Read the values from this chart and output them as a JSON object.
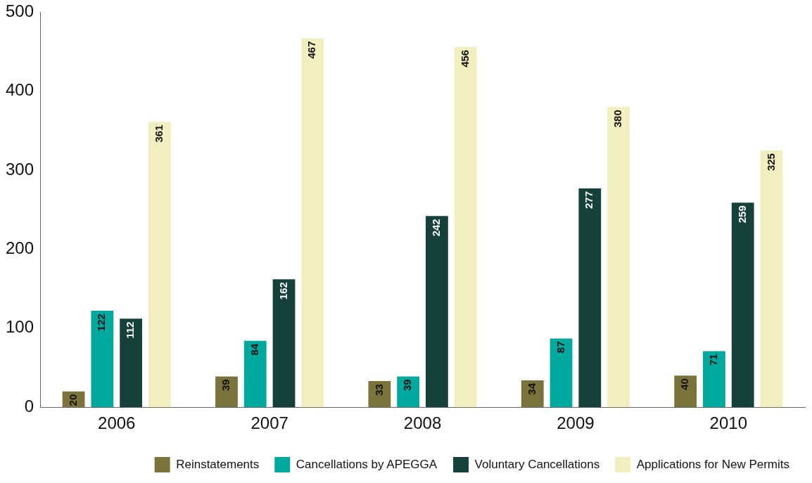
{
  "chart_data": {
    "type": "bar",
    "categories": [
      "2006",
      "2007",
      "2008",
      "2009",
      "2010"
    ],
    "series": [
      {
        "name": "Reinstatements",
        "color": "#7a743c",
        "values": [
          20,
          39,
          33,
          34,
          40
        ]
      },
      {
        "name": "Cancellations by APEGGA",
        "color": "#00a99d",
        "values": [
          122,
          84,
          39,
          87,
          71
        ]
      },
      {
        "name": "Voluntary Cancellations",
        "color": "#16403a",
        "values": [
          112,
          162,
          242,
          277,
          259
        ]
      },
      {
        "name": "Applications for New Permits",
        "color": "#f1efbf",
        "values": [
          361,
          467,
          456,
          380,
          325
        ]
      }
    ],
    "ylim": [
      0,
      500
    ],
    "yticks": [
      0,
      100,
      200,
      300,
      400,
      500
    ],
    "grid": false,
    "legend": "bottom right",
    "data_labels": true
  }
}
